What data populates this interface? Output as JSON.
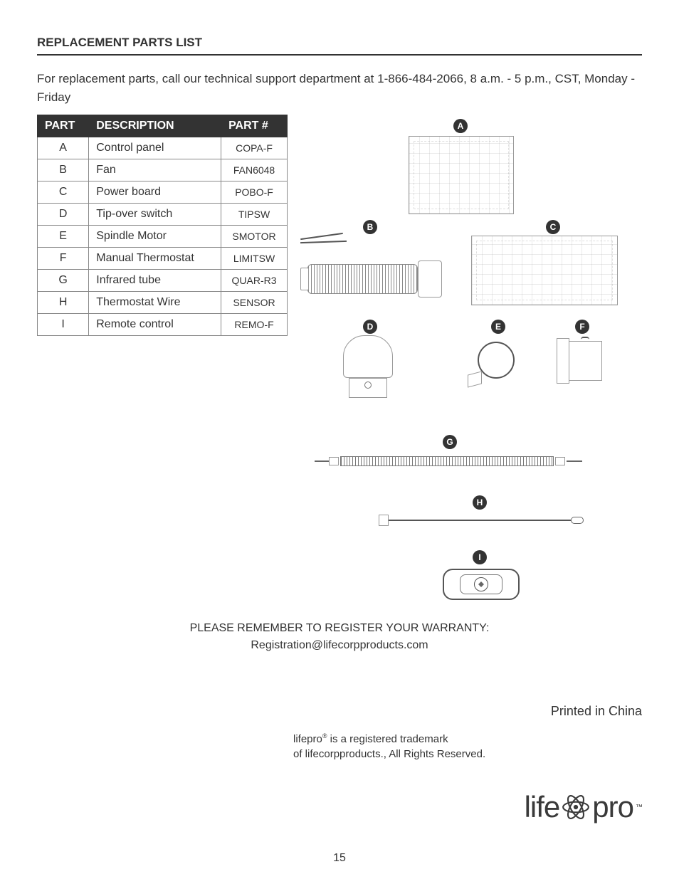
{
  "section_title": "REPLACEMENT PARTS LIST",
  "intro": "For replacement parts, call our technical support department at 1-866-484-2066, 8 a.m. - 5 p.m., CST, Monday - Friday",
  "table": {
    "headers": {
      "part": "PART",
      "desc": "DESCRIPTION",
      "num": "PART #"
    },
    "rows": [
      {
        "part": "A",
        "desc": "Control panel",
        "num": "COPA-F"
      },
      {
        "part": "B",
        "desc": "Fan",
        "num": "FAN6048"
      },
      {
        "part": "C",
        "desc": "Power board",
        "num": "POBO-F"
      },
      {
        "part": "D",
        "desc": "Tip-over switch",
        "num": "TIPSW"
      },
      {
        "part": "E",
        "desc": "Spindle Motor",
        "num": "SMOTOR"
      },
      {
        "part": "F",
        "desc": "Manual Thermostat",
        "num": "LIMITSW"
      },
      {
        "part": "G",
        "desc": "Infrared tube",
        "num": "QUAR-R3"
      },
      {
        "part": "H",
        "desc": "Thermostat Wire",
        "num": "SENSOR"
      },
      {
        "part": "I",
        "desc": "Remote control",
        "num": "REMO-F"
      }
    ]
  },
  "diagram_labels": {
    "A": "A",
    "B": "B",
    "C": "C",
    "D": "D",
    "E": "E",
    "F": "F",
    "G": "G",
    "H": "H",
    "I": "I"
  },
  "warranty_line1": "PLEASE REMEMBER TO REGISTER YOUR WARRANTY:",
  "warranty_line2": "Registration@lifecorpproducts.com",
  "printed": "Printed in China",
  "trademark_line1_a": "lifepro",
  "trademark_line1_b": " is a registered trademark",
  "trademark_line2": "of lifecorpproducts., All Rights Reserved.",
  "logo_left": "life",
  "logo_right": "pro",
  "logo_tm": "™",
  "page_number": "15",
  "colors": {
    "text": "#333333",
    "table_header_bg": "#333333",
    "table_header_fg": "#ffffff",
    "border": "#888888",
    "badge_bg": "#333333",
    "badge_fg": "#ffffff"
  }
}
